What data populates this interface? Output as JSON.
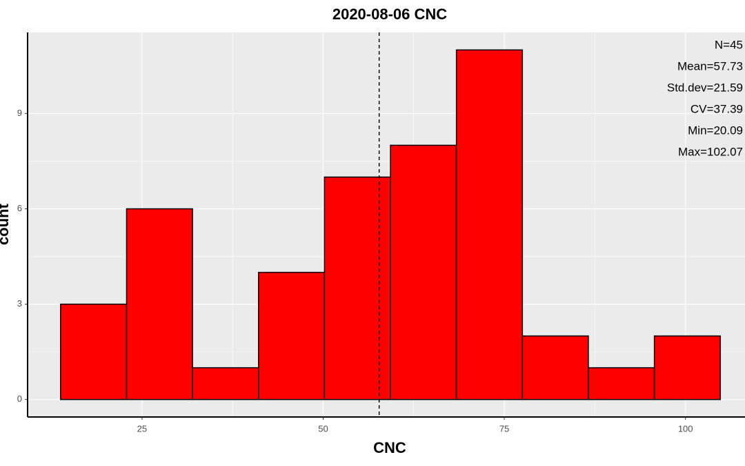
{
  "chart_data": {
    "type": "histogram",
    "title": "2020-08-06 CNC",
    "x_label": "CNC",
    "y_label": "count",
    "bins": [
      13.76,
      22.87,
      31.97,
      41.08,
      50.18,
      59.29,
      68.39,
      77.5,
      86.6,
      95.71,
      104.81
    ],
    "values": [
      3,
      6,
      1,
      4,
      7,
      8,
      11,
      2,
      1,
      2
    ],
    "color": "#ff0000",
    "edge_color": "#000000",
    "xlim": [
      9.21,
      109.36
    ],
    "ylim": [
      -0.55,
      11.55
    ],
    "xticks": [
      25,
      50,
      75,
      100
    ],
    "yticks": [
      0,
      3,
      6,
      9
    ],
    "grid": true,
    "mean_line": 57.73,
    "annotations": [
      "N=45",
      "Mean=57.73",
      "Std.dev=21.59",
      "CV=37.39",
      "Min=20.09",
      "Max=102.07"
    ]
  }
}
